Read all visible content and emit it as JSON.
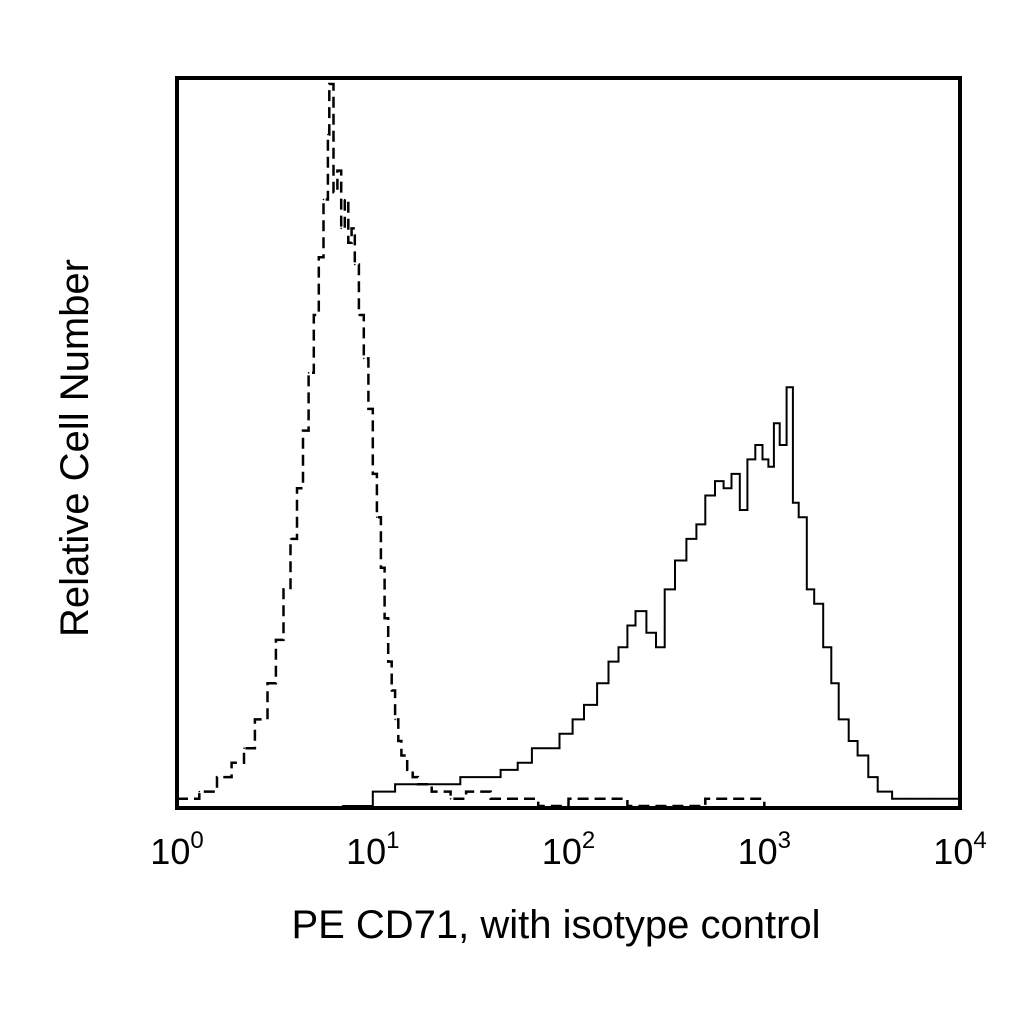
{
  "chart_data": {
    "type": "line",
    "title": "",
    "xlabel": "PE CD71, with isotype control",
    "ylabel": "Relative Cell Number",
    "x_scale": "log",
    "xlim": [
      1,
      10000
    ],
    "ylim": [
      0,
      1
    ],
    "grid": false,
    "x_ticks": [
      {
        "base": "10",
        "exp": "0",
        "value": 1
      },
      {
        "base": "10",
        "exp": "1",
        "value": 10
      },
      {
        "base": "10",
        "exp": "2",
        "value": 100
      },
      {
        "base": "10",
        "exp": "3",
        "value": 1000
      },
      {
        "base": "10",
        "exp": "4",
        "value": 10000
      }
    ],
    "series": [
      {
        "style": "dashed",
        "x": [
          1.0,
          1.3,
          1.6,
          1.9,
          2.2,
          2.5,
          2.9,
          3.2,
          3.5,
          3.8,
          4.1,
          4.4,
          4.7,
          5.0,
          5.3,
          5.6,
          5.9,
          6.0,
          6.3,
          6.6,
          6.9,
          7.2,
          7.5,
          7.8,
          8.1,
          8.5,
          9.0,
          9.5,
          10.0,
          10.5,
          11.0,
          11.5,
          12.0,
          12.5,
          13.0,
          13.5,
          14.0,
          15.0,
          16.0,
          17.0,
          18.0,
          20.0,
          25.0,
          30.0,
          40.0,
          50.0,
          70.0,
          100.0,
          200.0,
          500.0,
          1000.0
        ],
        "y": [
          0.01,
          0.02,
          0.04,
          0.06,
          0.08,
          0.12,
          0.17,
          0.23,
          0.3,
          0.37,
          0.44,
          0.52,
          0.6,
          0.68,
          0.76,
          0.84,
          0.93,
          1.0,
          0.85,
          0.88,
          0.8,
          0.84,
          0.78,
          0.8,
          0.75,
          0.68,
          0.62,
          0.55,
          0.46,
          0.4,
          0.33,
          0.26,
          0.2,
          0.16,
          0.12,
          0.09,
          0.07,
          0.05,
          0.04,
          0.03,
          0.03,
          0.02,
          0.01,
          0.02,
          0.01,
          0.01,
          0.0,
          0.01,
          0.0,
          0.01,
          0.0
        ]
      },
      {
        "style": "solid",
        "x": [
          7.0,
          10.0,
          13.0,
          17.0,
          22.0,
          28.0,
          35.0,
          45.0,
          55.0,
          65.0,
          75.0,
          90.0,
          105.0,
          120.0,
          140.0,
          160.0,
          180.0,
          200.0,
          220.0,
          250.0,
          280.0,
          310.0,
          350.0,
          400.0,
          450.0,
          500.0,
          560.0,
          620.0,
          680.0,
          750.0,
          820.0,
          900.0,
          980.0,
          1050.0,
          1120.0,
          1200.0,
          1300.0,
          1400.0,
          1500.0,
          1650.0,
          1800.0,
          2000.0,
          2200.0,
          2400.0,
          2700.0,
          3000.0,
          3400.0,
          3800.0,
          4500.0,
          5500.0,
          7000.0,
          10000.0
        ],
        "y": [
          0.0,
          0.02,
          0.03,
          0.03,
          0.03,
          0.04,
          0.04,
          0.05,
          0.06,
          0.08,
          0.08,
          0.1,
          0.12,
          0.14,
          0.17,
          0.2,
          0.22,
          0.25,
          0.27,
          0.24,
          0.22,
          0.3,
          0.34,
          0.37,
          0.39,
          0.43,
          0.45,
          0.44,
          0.46,
          0.41,
          0.48,
          0.5,
          0.48,
          0.47,
          0.53,
          0.5,
          0.58,
          0.42,
          0.4,
          0.3,
          0.28,
          0.22,
          0.17,
          0.12,
          0.09,
          0.07,
          0.04,
          0.02,
          0.01,
          0.01,
          0.01,
          0.01
        ]
      }
    ]
  }
}
